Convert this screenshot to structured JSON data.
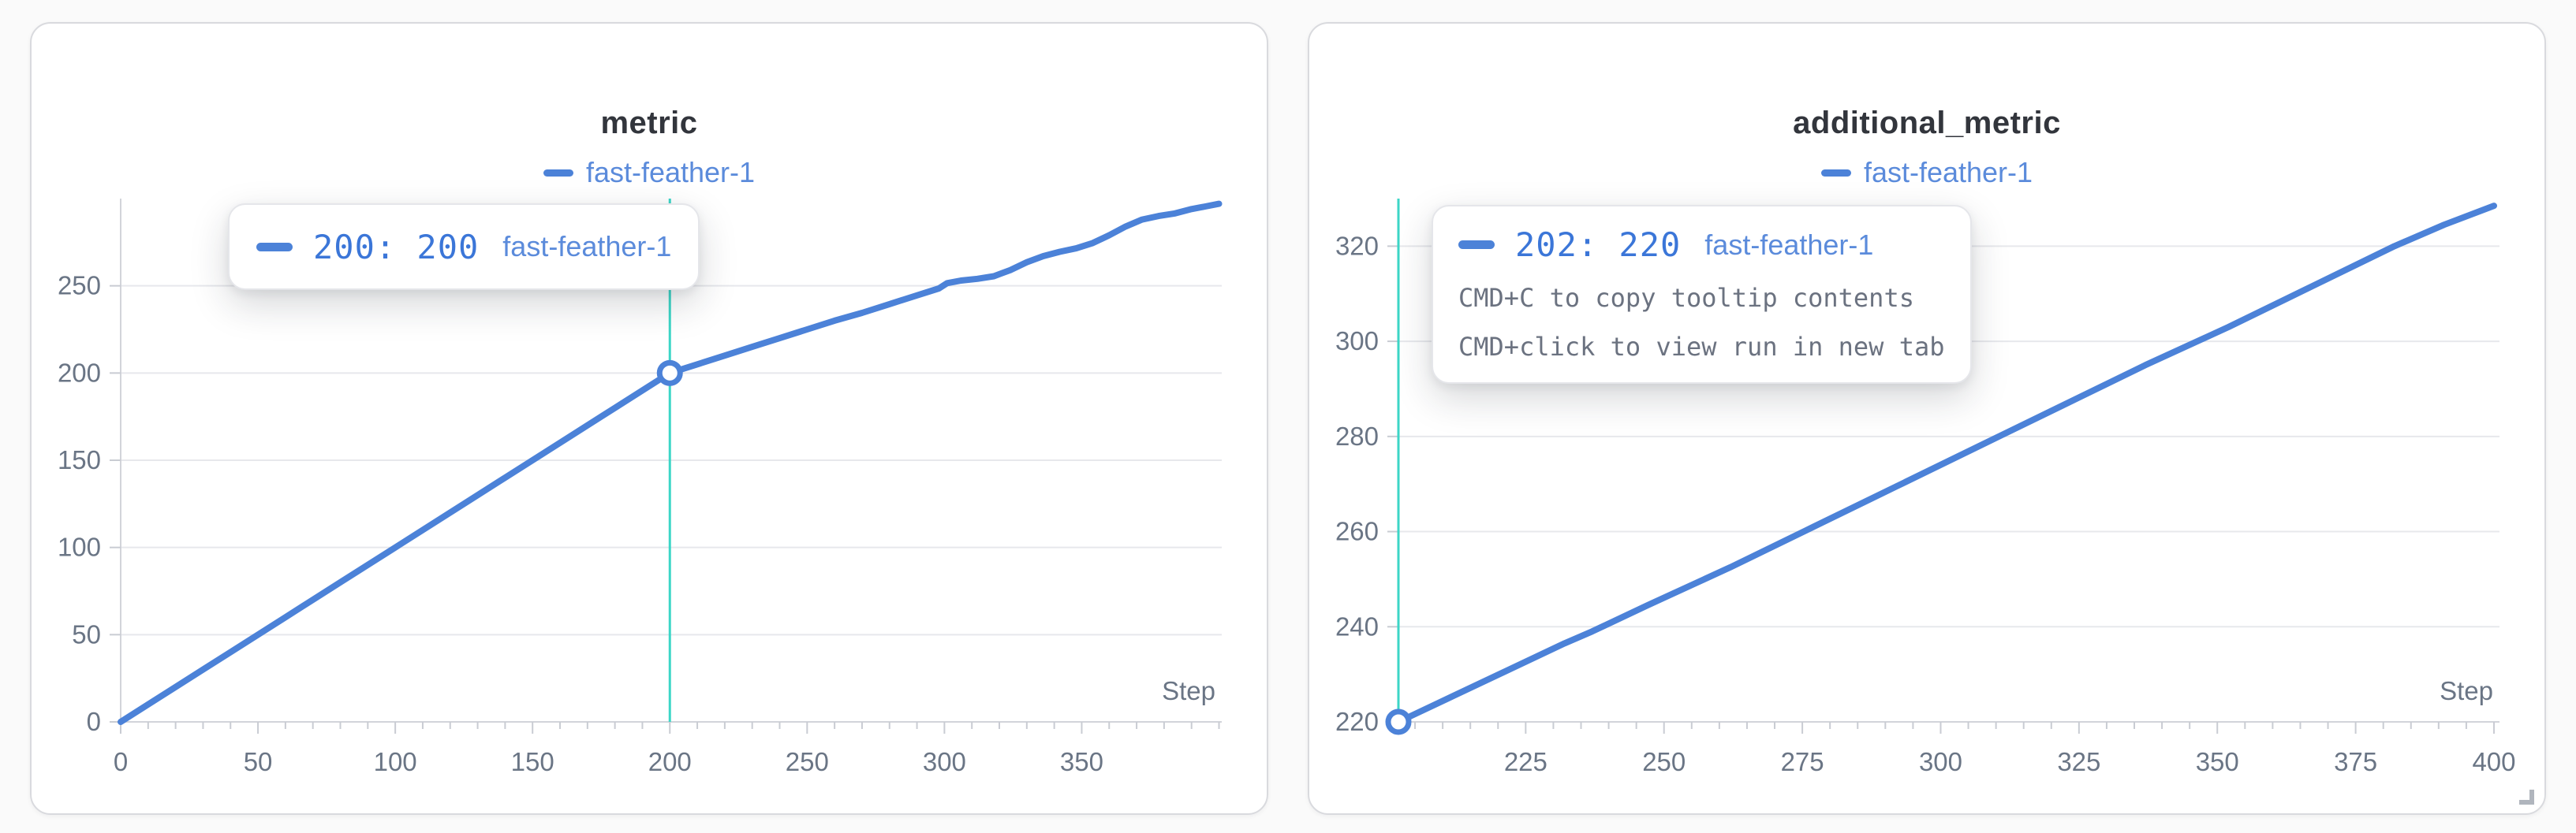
{
  "theme": {
    "page_background": "#fafafa",
    "panel_background": "#ffffff",
    "panel_border": "#d9dade",
    "line_color": "#4c82d8",
    "crosshair_color": "#3cd6c7",
    "grid_color": "#e7e8ec",
    "axis_color": "#d2d4da",
    "tick_color": "#c9ccd3",
    "tick_label_color": "#6a7585",
    "title_color": "#32353c",
    "legend_color": "#5b8bdb",
    "tooltip_number_color": "#3b76d8",
    "tooltip_hint_color": "#6b7280",
    "resize_handle_color": "#b0b5bd",
    "marker_fill": "#ffffff"
  },
  "panels": [
    {
      "title": "metric",
      "legend": {
        "label": "fast-feather-1"
      },
      "xlabel": "Step",
      "tooltip": {
        "value_text": "200: 200",
        "run_name": "fast-feather-1",
        "hints": []
      }
    },
    {
      "title": "additional_metric",
      "legend": {
        "label": "fast-feather-1"
      },
      "xlabel": "Step",
      "tooltip": {
        "value_text": "202: 220",
        "run_name": "fast-feather-1",
        "hints": [
          "CMD+C to copy tooltip contents",
          "CMD+click to view run in new tab"
        ]
      }
    }
  ],
  "chart_data": [
    {
      "type": "line",
      "title": "metric",
      "xlabel": "Step",
      "ylabel": "",
      "legend": [
        "fast-feather-1"
      ],
      "legend_position": "top",
      "grid": "horizontal",
      "xlim": [
        0,
        401
      ],
      "ylim": [
        0,
        300
      ],
      "xticks": [
        0,
        50,
        100,
        150,
        200,
        250,
        300,
        350
      ],
      "x_minor_step": 10,
      "yticks": [
        0,
        50,
        100,
        150,
        200,
        250
      ],
      "crosshair_x": 200,
      "marker": [
        200,
        200
      ],
      "series": [
        {
          "name": "fast-feather-1",
          "points": [
            [
              0,
              0
            ],
            [
              20,
              20
            ],
            [
              40,
              40
            ],
            [
              60,
              60
            ],
            [
              80,
              80
            ],
            [
              100,
              100
            ],
            [
              120,
              120
            ],
            [
              140,
              140
            ],
            [
              160,
              160
            ],
            [
              180,
              180
            ],
            [
              200,
              200
            ],
            [
              210,
              205
            ],
            [
              220,
              210
            ],
            [
              230,
              215
            ],
            [
              240,
              220
            ],
            [
              250,
              225
            ],
            [
              260,
              230
            ],
            [
              270,
              234.5
            ],
            [
              280,
              239.5
            ],
            [
              290,
              244.5
            ],
            [
              298,
              248.5
            ],
            [
              301,
              251.5
            ],
            [
              306,
              253
            ],
            [
              312,
              254
            ],
            [
              318,
              255.5
            ],
            [
              324,
              259
            ],
            [
              330,
              263.5
            ],
            [
              336,
              267
            ],
            [
              342,
              269.5
            ],
            [
              348,
              271.5
            ],
            [
              354,
              274.5
            ],
            [
              360,
              279
            ],
            [
              366,
              284
            ],
            [
              372,
              288
            ],
            [
              378,
              290
            ],
            [
              384,
              291.5
            ],
            [
              390,
              294
            ],
            [
              395,
              295.5
            ],
            [
              400,
              297
            ]
          ]
        }
      ]
    },
    {
      "type": "line",
      "title": "additional_metric",
      "xlabel": "Step",
      "ylabel": "",
      "legend": [
        "fast-feather-1"
      ],
      "legend_position": "top",
      "grid": "horizontal",
      "xlim": [
        202,
        401
      ],
      "ylim": [
        220,
        330
      ],
      "xticks": [
        225,
        250,
        275,
        300,
        325,
        350,
        375,
        400
      ],
      "x_minor_step": 5,
      "yticks": [
        220,
        240,
        260,
        280,
        300,
        320
      ],
      "crosshair_x": 202,
      "marker": [
        202,
        220
      ],
      "series": [
        {
          "name": "fast-feather-1",
          "points": [
            [
              202,
              220
            ],
            [
              212,
              225.5
            ],
            [
              222,
              231
            ],
            [
              232,
              236.5
            ],
            [
              237,
              239
            ],
            [
              247,
              244.5
            ],
            [
              262,
              252.5
            ],
            [
              277,
              261
            ],
            [
              292,
              269.5
            ],
            [
              307,
              278
            ],
            [
              322,
              286.5
            ],
            [
              337,
              295
            ],
            [
              352,
              303
            ],
            [
              367,
              311.5
            ],
            [
              382,
              320
            ],
            [
              391,
              324.5
            ],
            [
              400,
              328.5
            ]
          ]
        }
      ]
    }
  ]
}
